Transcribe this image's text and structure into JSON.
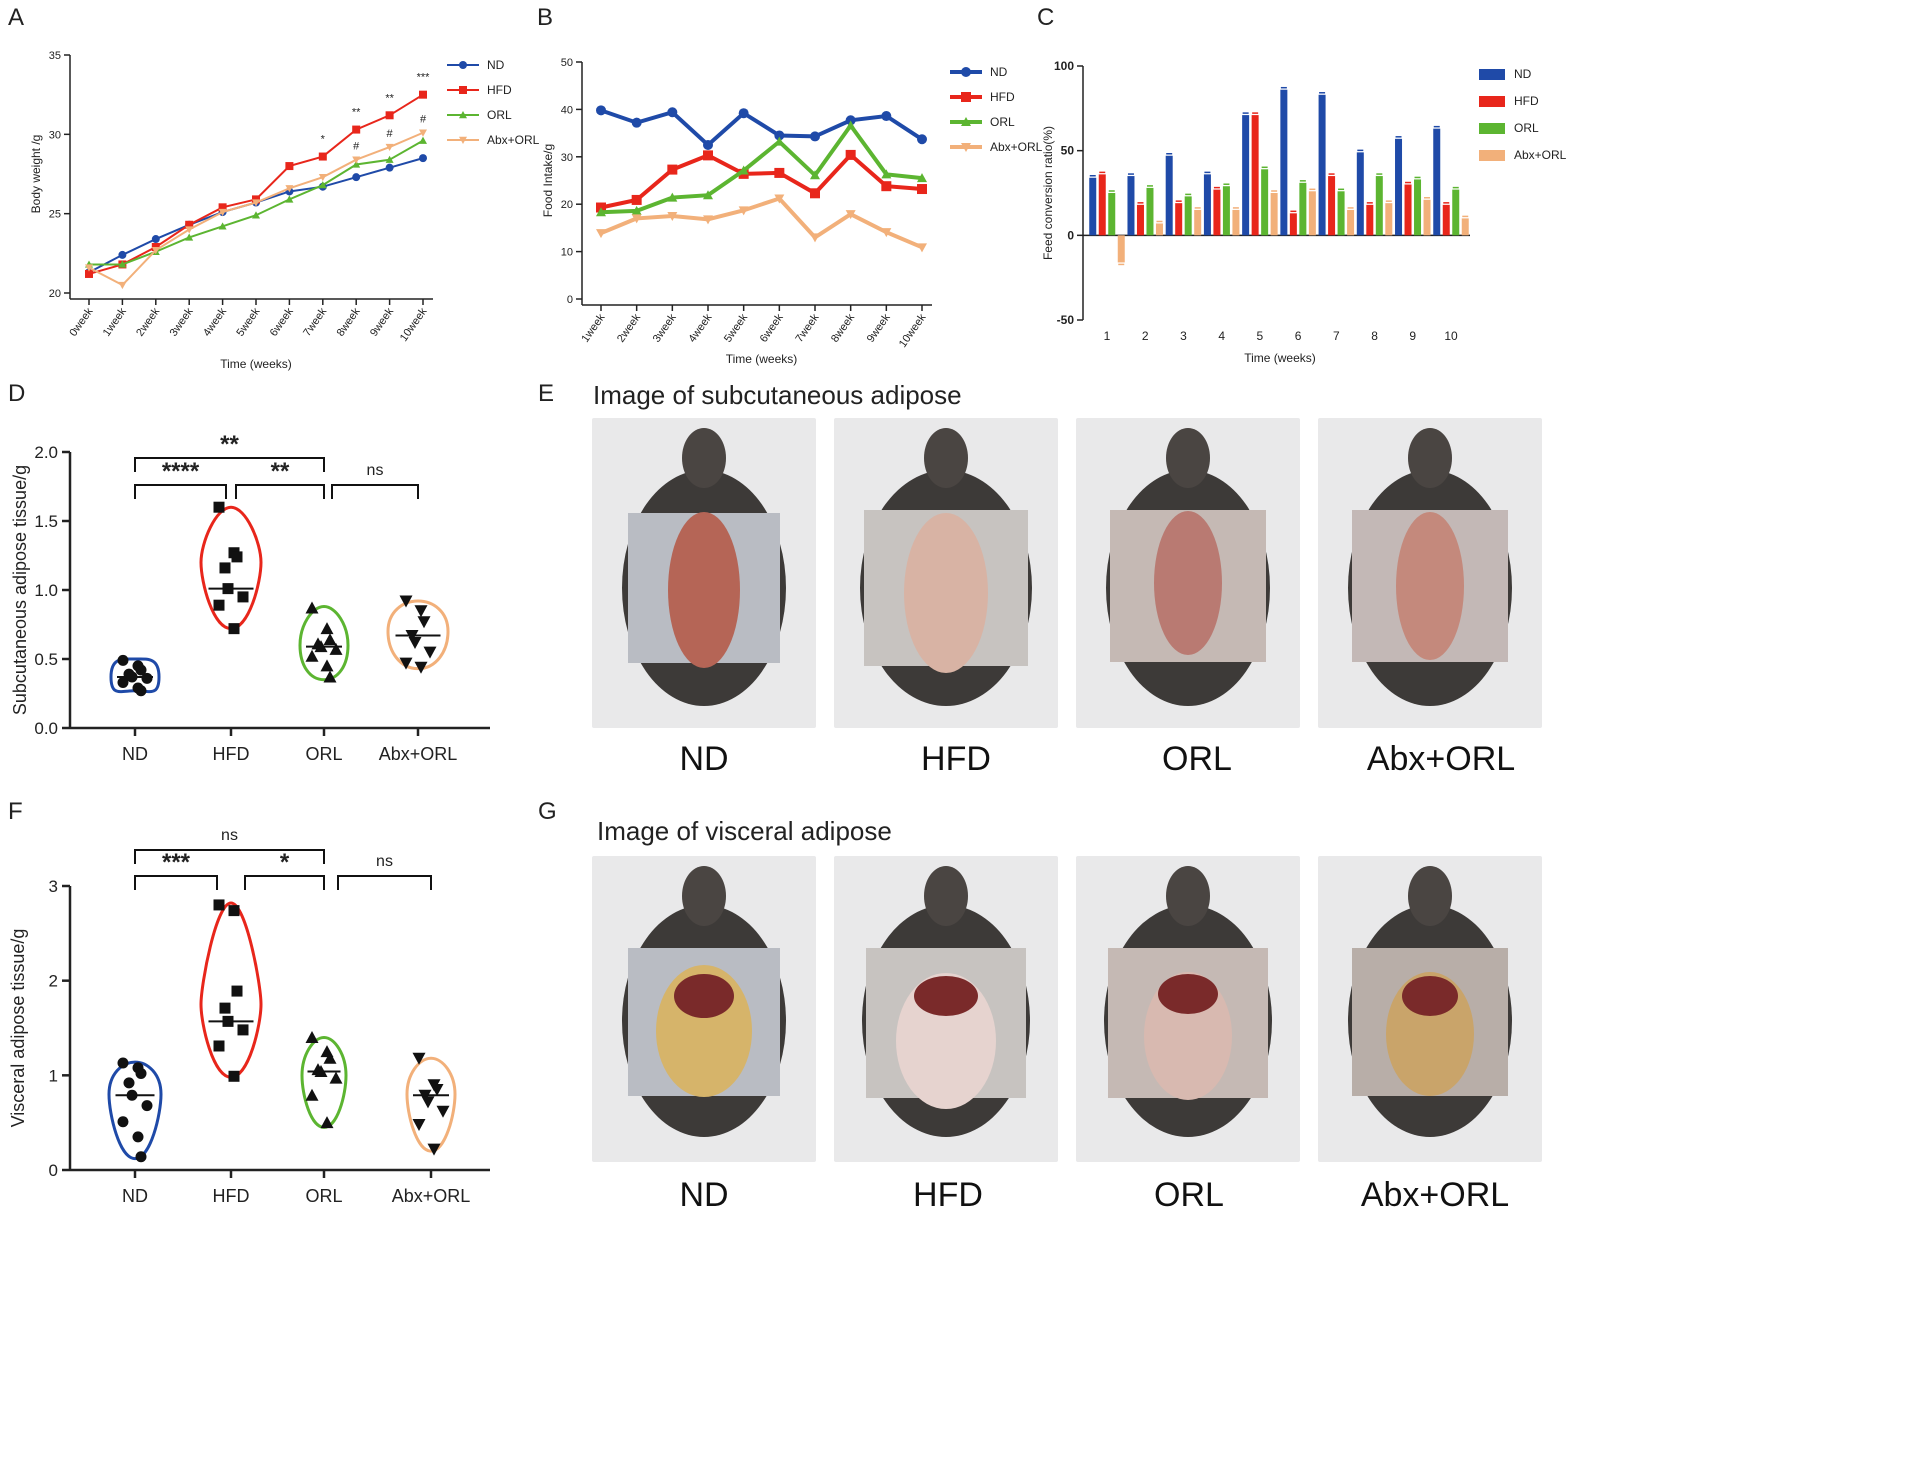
{
  "panel_letters": [
    "A",
    "B",
    "C",
    "D",
    "E",
    "F",
    "G"
  ],
  "colors": {
    "ND": "#1f4aa8",
    "HFD": "#e8261b",
    "ORL": "#5cb531",
    "AbxORL": "#f2b07a"
  },
  "photos": {
    "subcutaneous_title": "Image of subcutaneous adipose",
    "visceral_title": "Image of visceral adipose",
    "labels": [
      "ND",
      "HFD",
      "ORL",
      "Abx+ORL"
    ]
  },
  "chart_data": [
    {
      "id": "A",
      "type": "line",
      "title": "",
      "xlabel": "Time (weeks)",
      "ylabel": "Body weight /g",
      "categories": [
        "0week",
        "1week",
        "2week",
        "3week",
        "4week",
        "5week",
        "6week",
        "7week",
        "8week",
        "9week",
        "10week"
      ],
      "ylim": [
        20,
        35
      ],
      "yticks": [
        20,
        25,
        30,
        35
      ],
      "series": [
        {
          "name": "ND",
          "color": "#1f4aa8",
          "marker": "circle",
          "values": [
            21.3,
            22.4,
            23.4,
            24.3,
            25.1,
            25.7,
            26.4,
            26.7,
            27.3,
            27.9,
            28.5
          ]
        },
        {
          "name": "HFD",
          "color": "#e8261b",
          "marker": "square",
          "values": [
            21.2,
            21.8,
            22.9,
            24.3,
            25.4,
            25.9,
            28.0,
            28.6,
            30.3,
            31.2,
            32.5
          ]
        },
        {
          "name": "ORL",
          "color": "#5cb531",
          "marker": "triangle",
          "values": [
            21.8,
            21.8,
            22.6,
            23.5,
            24.2,
            24.9,
            25.9,
            26.8,
            28.1,
            28.4,
            29.6
          ]
        },
        {
          "name": "Abx+ORL",
          "color": "#f2b07a",
          "marker": "triangle-down",
          "values": [
            21.6,
            20.5,
            22.7,
            24.0,
            25.1,
            25.7,
            26.6,
            27.3,
            28.4,
            29.2,
            30.1
          ]
        }
      ],
      "annotations": [
        {
          "x": "7week",
          "text": "*"
        },
        {
          "x": "8week",
          "text": "**"
        },
        {
          "x": "8week",
          "text": "#"
        },
        {
          "x": "9week",
          "text": "**"
        },
        {
          "x": "9week",
          "text": "#"
        },
        {
          "x": "10week",
          "text": "***"
        },
        {
          "x": "10week",
          "text": "#"
        }
      ],
      "legend": "top-right"
    },
    {
      "id": "B",
      "type": "line",
      "title": "",
      "xlabel": "Time (weeks)",
      "ylabel": "Food Intake/g",
      "categories": [
        "1week",
        "2week",
        "3week",
        "4week",
        "5week",
        "6week",
        "7week",
        "8week",
        "9week",
        "10week"
      ],
      "ylim": [
        0,
        50
      ],
      "yticks": [
        0,
        10,
        20,
        30,
        40,
        50
      ],
      "series": [
        {
          "name": "ND",
          "color": "#1f4aa8",
          "marker": "circle",
          "values": [
            39.8,
            37.2,
            39.4,
            32.5,
            39.2,
            34.5,
            34.3,
            37.7,
            38.6,
            33.7
          ]
        },
        {
          "name": "HFD",
          "color": "#e8261b",
          "marker": "square",
          "values": [
            19.3,
            20.9,
            27.3,
            30.3,
            26.4,
            26.6,
            22.3,
            30.4,
            23.8,
            23.2
          ]
        },
        {
          "name": "ORL",
          "color": "#5cb531",
          "marker": "triangle",
          "values": [
            18.3,
            18.6,
            21.4,
            21.9,
            27.1,
            33.2,
            26.1,
            36.6,
            26.3,
            25.5
          ]
        },
        {
          "name": "Abx+ORL",
          "color": "#f2b07a",
          "marker": "triangle-down",
          "values": [
            13.9,
            17.0,
            17.5,
            16.8,
            18.7,
            21.2,
            13.0,
            17.9,
            14.1,
            10.9
          ]
        }
      ],
      "legend": "top-right"
    },
    {
      "id": "C",
      "type": "bar",
      "title": "",
      "xlabel": "Time (weeks)",
      "ylabel": "Feed conversion ratio(%)",
      "categories": [
        "1",
        "2",
        "3",
        "4",
        "5",
        "6",
        "7",
        "8",
        "9",
        "10"
      ],
      "ylim": [
        -50,
        100
      ],
      "yticks": [
        -50,
        0,
        50,
        100
      ],
      "series": [
        {
          "name": "ND",
          "color": "#1f4aa8",
          "values": [
            34,
            35,
            47,
            36,
            71,
            86,
            83,
            49,
            57,
            63
          ]
        },
        {
          "name": "HFD",
          "color": "#e8261b",
          "values": [
            36,
            18,
            19,
            27,
            71,
            13,
            35,
            18,
            30,
            18
          ]
        },
        {
          "name": "ORL",
          "color": "#5cb531",
          "values": [
            25,
            28,
            23,
            29,
            39,
            31,
            26,
            35,
            33,
            27
          ]
        },
        {
          "name": "Abx+ORL",
          "color": "#f2b07a",
          "values": [
            -16,
            7,
            15,
            15,
            25,
            26,
            15,
            19,
            21,
            10
          ]
        }
      ],
      "legend": "top-right"
    },
    {
      "id": "D",
      "type": "violin",
      "title": "",
      "xlabel": "",
      "ylabel": "Subcutaneous adipose tissue/g",
      "categories": [
        "ND",
        "HFD",
        "ORL",
        "Abx+ORL"
      ],
      "ylim": [
        0,
        2.0
      ],
      "yticks": [
        "0.0",
        "0.5",
        "1.0",
        "1.5",
        "2.0"
      ],
      "groups": [
        {
          "name": "ND",
          "color": "#1f4aa8",
          "median": 0.37,
          "range": [
            0.27,
            0.5
          ],
          "points": [
            0.49,
            0.45,
            0.42,
            0.39,
            0.37,
            0.36,
            0.33,
            0.29,
            0.27
          ]
        },
        {
          "name": "HFD",
          "color": "#e8261b",
          "median": 1.01,
          "range": [
            0.72,
            1.6
          ],
          "points": [
            1.6,
            1.27,
            1.24,
            1.16,
            1.01,
            0.95,
            0.89,
            0.72
          ]
        },
        {
          "name": "ORL",
          "color": "#5cb531",
          "median": 0.59,
          "range": [
            0.35,
            0.88
          ],
          "points": [
            0.87,
            0.72,
            0.64,
            0.61,
            0.59,
            0.57,
            0.52,
            0.45,
            0.37
          ]
        },
        {
          "name": "Abx+ORL",
          "color": "#f2b07a",
          "median": 0.67,
          "range": [
            0.43,
            0.92
          ],
          "points": [
            0.92,
            0.85,
            0.77,
            0.67,
            0.62,
            0.55,
            0.47,
            0.44
          ]
        }
      ],
      "significance": [
        {
          "from": "ND",
          "to": "ORL",
          "text": "**"
        },
        {
          "from": "ND",
          "to": "HFD",
          "text": "****"
        },
        {
          "from": "HFD",
          "to": "ORL",
          "text": "**"
        },
        {
          "from": "ORL",
          "to": "Abx+ORL",
          "text": "ns"
        }
      ]
    },
    {
      "id": "F",
      "type": "violin",
      "title": "",
      "xlabel": "",
      "ylabel": "Visceral adipose tissue/g",
      "categories": [
        "ND",
        "HFD",
        "ORL",
        "Abx+ORL"
      ],
      "ylim": [
        0,
        3
      ],
      "yticks": [
        "0",
        "1",
        "2",
        "3"
      ],
      "groups": [
        {
          "name": "ND",
          "color": "#1f4aa8",
          "median": 0.79,
          "range": [
            0.12,
            1.14
          ],
          "points": [
            1.13,
            1.08,
            1.02,
            0.92,
            0.79,
            0.68,
            0.51,
            0.35,
            0.14
          ]
        },
        {
          "name": "HFD",
          "color": "#e8261b",
          "median": 1.57,
          "range": [
            0.98,
            2.82
          ],
          "points": [
            2.8,
            2.74,
            1.89,
            1.71,
            1.57,
            1.48,
            1.31,
            0.99
          ]
        },
        {
          "name": "ORL",
          "color": "#5cb531",
          "median": 1.04,
          "range": [
            0.45,
            1.4
          ],
          "points": [
            1.4,
            1.25,
            1.18,
            1.06,
            1.04,
            0.97,
            0.79,
            0.5
          ]
        },
        {
          "name": "Abx+ORL",
          "color": "#f2b07a",
          "median": 0.79,
          "range": [
            0.2,
            1.18
          ],
          "points": [
            1.18,
            0.9,
            0.85,
            0.79,
            0.72,
            0.62,
            0.48,
            0.22
          ]
        }
      ],
      "significance": [
        {
          "from": "ND",
          "to": "ORL",
          "text": "ns"
        },
        {
          "from": "ND",
          "to": "HFD",
          "text": "***"
        },
        {
          "from": "HFD",
          "to": "ORL",
          "text": "*"
        },
        {
          "from": "ORL",
          "to": "Abx+ORL",
          "text": "ns"
        }
      ]
    }
  ]
}
